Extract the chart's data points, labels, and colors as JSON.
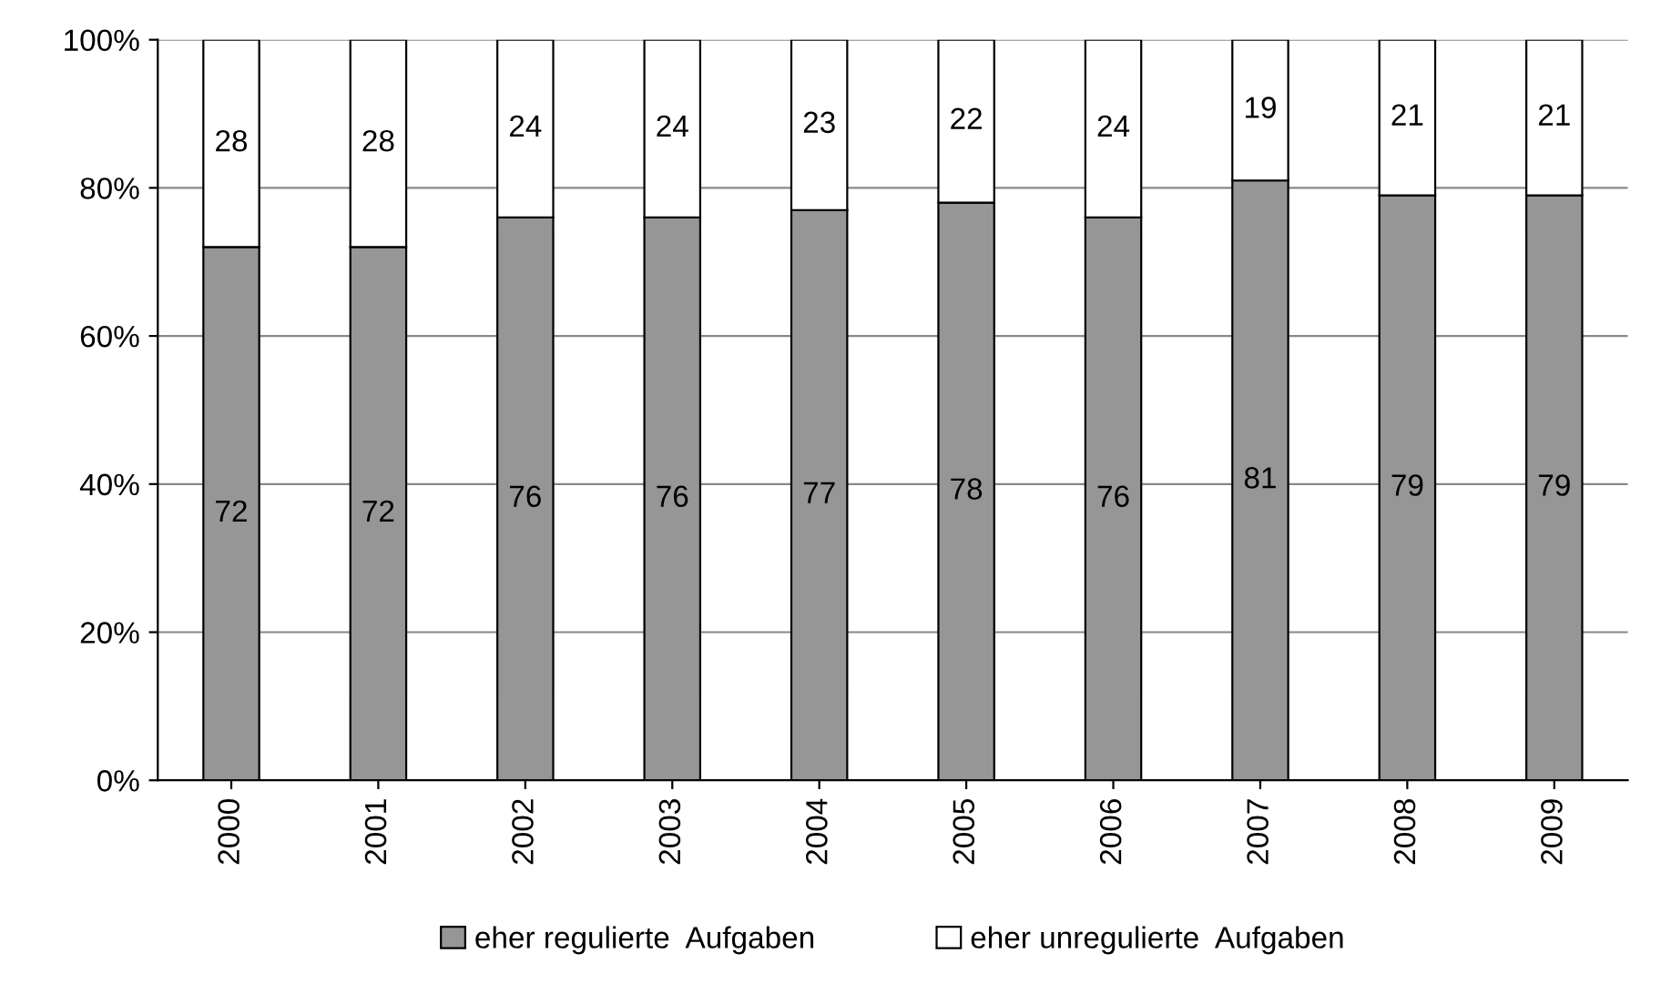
{
  "chart_data": {
    "type": "bar",
    "stacked": true,
    "categories": [
      "2000",
      "2001",
      "2002",
      "2003",
      "2004",
      "2005",
      "2006",
      "2007",
      "2008",
      "2009"
    ],
    "series": [
      {
        "name": "eher regulierte  Aufgaben",
        "color": "#969696",
        "values": [
          72,
          72,
          76,
          76,
          77,
          78,
          76,
          81,
          79,
          79
        ]
      },
      {
        "name": "eher unregulierte  Aufgaben",
        "color": "#ffffff",
        "values": [
          28,
          28,
          24,
          24,
          23,
          22,
          24,
          19,
          21,
          21
        ]
      }
    ],
    "ylim": [
      0,
      100
    ],
    "yticks": [
      {
        "value": 0,
        "label": "0%"
      },
      {
        "value": 20,
        "label": "20%"
      },
      {
        "value": 40,
        "label": "40%"
      },
      {
        "value": 60,
        "label": "60%"
      },
      {
        "value": 80,
        "label": "80%"
      },
      {
        "value": 100,
        "label": "100%"
      }
    ],
    "grid": "y",
    "legend": "bottom",
    "data_labels": true
  }
}
